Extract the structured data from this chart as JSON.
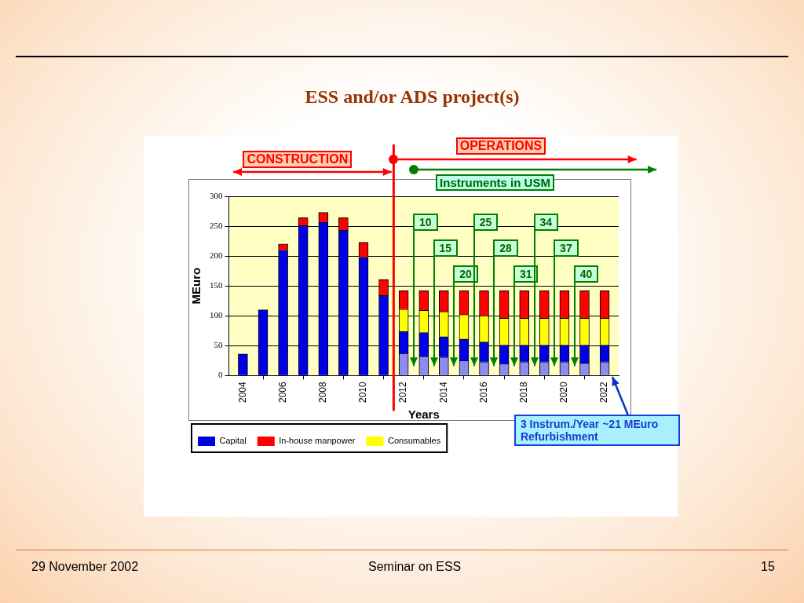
{
  "chart_data": {
    "type": "bar",
    "title": "ESS and/or ADS project(s)",
    "xlabel": "Years",
    "ylabel": "MEuro",
    "x": [
      2004,
      2005,
      2006,
      2007,
      2008,
      2009,
      2010,
      2011,
      2012,
      2013,
      2014,
      2015,
      2016,
      2017,
      2018,
      2019,
      2020,
      2021,
      2022
    ],
    "xlim": [
      2003.3,
      2022.7
    ],
    "xticks": [
      2004,
      2006,
      2008,
      2010,
      2012,
      2014,
      2016,
      2018,
      2020,
      2022
    ],
    "stacked": true,
    "series": [
      {
        "color": "#8c8cf0",
        "values": [
          null,
          null,
          null,
          null,
          null,
          null,
          null,
          null,
          37,
          32,
          31,
          25,
          23,
          20,
          23,
          23,
          23,
          21,
          23
        ]
      },
      {
        "name": "Capital",
        "color": "#0000e6",
        "values": [
          36,
          110,
          210,
          251,
          257,
          243,
          198,
          134,
          37,
          40,
          34,
          36,
          33,
          31,
          28,
          28,
          28,
          30,
          28
        ]
      },
      {
        "name": "Consumables",
        "color": "#ffff00",
        "values": [
          null,
          null,
          null,
          null,
          null,
          null,
          null,
          null,
          37,
          37,
          42,
          41,
          44,
          45,
          45,
          45,
          45,
          45,
          45
        ]
      },
      {
        "name": "In-house manpower",
        "color": "#ff0000",
        "values": [
          null,
          null,
          10,
          13,
          16,
          21,
          25,
          27,
          31,
          33,
          35,
          40,
          42,
          46,
          46,
          46,
          46,
          46,
          46
        ]
      }
    ],
    "ylim": [
      0,
      300
    ],
    "yticks": [
      0,
      50,
      100,
      150,
      200,
      250,
      300
    ],
    "ref_lines": [
      {
        "axis": "x",
        "value": 2011.5,
        "color": "#ff0000"
      }
    ],
    "grid": "y",
    "legend": "bottom",
    "annotations": [
      "CONSTRUCTION",
      "OPERATIONS",
      "Instruments in USM",
      "10",
      "15",
      "20",
      "25",
      "28",
      "31",
      "34",
      "37",
      "40",
      "3 Instrum./Year ~21 MEuro Refurbishment",
      "29 November 2002",
      "Seminar on ESS",
      "15"
    ]
  }
}
